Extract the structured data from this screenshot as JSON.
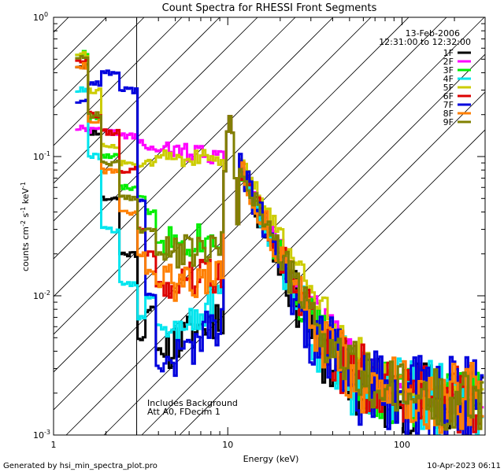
{
  "chart_data": {
    "type": "line",
    "title": "Count Spectra for RHESSI Front Segments",
    "xlabel": "Energy (keV)",
    "ylabel_html": "counts cm⁻² s⁻¹ keV⁻¹",
    "ylabel_parts": [
      "counts cm",
      "-2",
      " s",
      "-1",
      " keV",
      "-1"
    ],
    "x_scale": "log",
    "y_scale": "log",
    "xlim": [
      1,
      300
    ],
    "ylim": [
      0.001,
      1
    ],
    "x_ticks": [
      {
        "value": 1,
        "label": "1"
      },
      {
        "value": 10,
        "label": "10"
      },
      {
        "value": 100,
        "label": "100"
      }
    ],
    "y_ticks": [
      {
        "value": 1,
        "label": "10",
        "exp": "0"
      },
      {
        "value": 0.1,
        "label": "10",
        "exp": "-1"
      },
      {
        "value": 0.01,
        "label": "10",
        "exp": "-2"
      },
      {
        "value": 0.001,
        "label": "10",
        "exp": "-3"
      }
    ],
    "date_text": "13-Feb-2006",
    "time_text": "12:31:00 to 12:32:00",
    "annotation_line1": "Includes Background",
    "annotation_line2": "Att A0, FDecim 1",
    "hatched_region_max_kev": 3,
    "footer_left": "Generated by hsi_min_spectra_plot.pro",
    "footer_right": "10-Apr-2023 06:11",
    "peak_kev": 10.3,
    "series": [
      {
        "name": "1F",
        "color": "#000000",
        "low": [
          0.45,
          0.15,
          0.05,
          0.02,
          0.005,
          0.008,
          0.004
        ],
        "cont": 0.09,
        "slope": 3.2,
        "noise": 0.45,
        "seed": 11
      },
      {
        "name": "2F",
        "color": "#ff00ff",
        "low": [
          0.16,
          0.155,
          0.15,
          0.14,
          0.125,
          0.115,
          0.11
        ],
        "cont": 0.09,
        "slope": 2.6,
        "noise": 0.2,
        "seed": 22
      },
      {
        "name": "3F",
        "color": "#00ee00",
        "low": [
          0.55,
          0.19,
          0.1,
          0.06,
          0.05,
          0.04,
          0.025
        ],
        "cont": 0.09,
        "slope": 3.0,
        "noise": 0.35,
        "seed": 33
      },
      {
        "name": "4F",
        "color": "#00e5ee",
        "low": [
          0.3,
          0.1,
          0.03,
          0.012,
          0.007,
          0.01,
          0.006
        ],
        "cont": 0.09,
        "slope": 3.2,
        "noise": 0.42,
        "seed": 44
      },
      {
        "name": "5F",
        "color": "#cccc00",
        "low": [
          0.55,
          0.3,
          0.12,
          0.09,
          0.085,
          0.09,
          0.1
        ],
        "cont": 0.1,
        "slope": 2.4,
        "noise": 0.18,
        "seed": 55
      },
      {
        "name": "6F",
        "color": "#dd0000",
        "low": [
          0.5,
          0.2,
          0.15,
          0.08,
          0.03,
          0.02,
          0.012
        ],
        "cont": 0.09,
        "slope": 3.0,
        "noise": 0.4,
        "seed": 66
      },
      {
        "name": "7F",
        "color": "#0000dd",
        "low": [
          0.25,
          0.34,
          0.4,
          0.3,
          0.05,
          0.01,
          0.003
        ],
        "cont": 0.09,
        "slope": 3.3,
        "noise": 0.5,
        "seed": 77
      },
      {
        "name": "8F",
        "color": "#ff7f00",
        "low": [
          0.45,
          0.18,
          0.08,
          0.04,
          0.02,
          0.015,
          0.012
        ],
        "cont": 0.09,
        "slope": 3.0,
        "noise": 0.4,
        "seed": 88
      },
      {
        "name": "9F",
        "color": "#808000",
        "low": [
          0.52,
          0.2,
          0.09,
          0.05,
          0.03,
          0.03,
          0.02
        ],
        "cont": 0.09,
        "slope": 2.9,
        "noise": 0.35,
        "seed": 99
      }
    ]
  }
}
